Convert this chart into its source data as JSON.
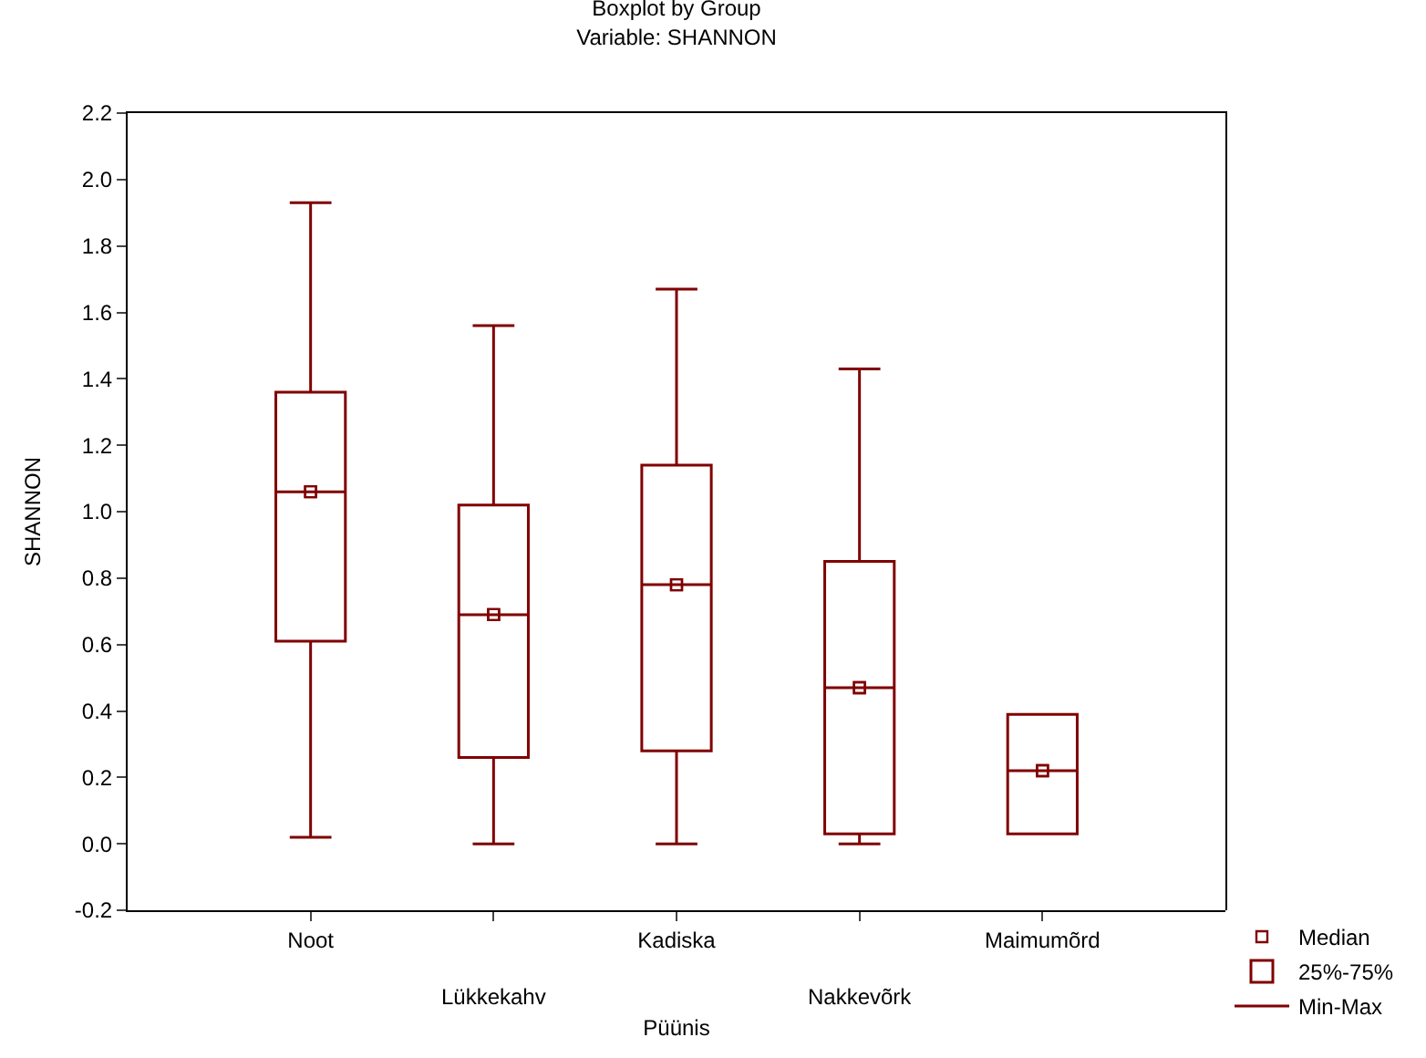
{
  "chart_data": {
    "type": "box",
    "title": "Boxplot by Group",
    "subtitle": "Variable: SHANNON",
    "xlabel": "Püünis",
    "ylabel": "SHANNON",
    "categories": [
      "Noot",
      "Lükkekahv",
      "Kadiska",
      "Nakkevõrk",
      "Maimumõrd"
    ],
    "series": [
      {
        "name": "Median",
        "type": "scatter",
        "color": "#800000",
        "x": [
          "Noot",
          "Lükkekahv",
          "Kadiska",
          "Nakkevõrk",
          "Maimumõrd"
        ],
        "values": [
          1.06,
          0.69,
          0.78,
          0.47,
          0.22
        ]
      },
      {
        "name": "25%-75%",
        "color": "#800000",
        "boxes": [
          {
            "low": 0.02,
            "q1": 0.61,
            "median": 1.06,
            "q3": 1.36,
            "high": 1.93
          },
          {
            "low": 0.0,
            "q1": 0.26,
            "median": 0.69,
            "q3": 1.02,
            "high": 1.56
          },
          {
            "low": 0.0,
            "q1": 0.28,
            "median": 0.78,
            "q3": 1.14,
            "high": 1.67
          },
          {
            "low": 0.0,
            "q1": 0.03,
            "median": 0.47,
            "q3": 0.85,
            "high": 1.43
          },
          {
            "low": 0.03,
            "q1": 0.03,
            "median": 0.22,
            "q3": 0.39,
            "high": 0.39
          }
        ]
      }
    ],
    "ylim": [
      -0.2,
      2.2
    ],
    "yticks": [
      {
        "value": -0.2,
        "label": "-0.2"
      },
      {
        "value": 0,
        "label": "0.0"
      },
      {
        "value": 0.2,
        "label": "0.2"
      },
      {
        "value": 0.4,
        "label": "0.4"
      },
      {
        "value": 0.6,
        "label": "0.6"
      },
      {
        "value": 0.8,
        "label": "0.8"
      },
      {
        "value": 1.0,
        "label": "1.0"
      },
      {
        "value": 1.2,
        "label": "1.2"
      },
      {
        "value": 1.4,
        "label": "1.4"
      },
      {
        "value": 1.6,
        "label": "1.6"
      },
      {
        "value": 1.8,
        "label": "1.8"
      },
      {
        "value": 2.0,
        "label": "2.0"
      },
      {
        "value": 2.2,
        "label": "2.2"
      }
    ],
    "legend": "bottom right",
    "marker": "square",
    "annotations": [
      "Min-Max"
    ]
  }
}
